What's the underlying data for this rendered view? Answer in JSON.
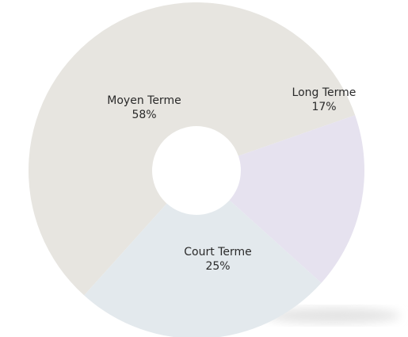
{
  "chart_data": {
    "type": "donut",
    "categories": [
      "Moyen Terme",
      "Long Terme",
      "Court Terme"
    ],
    "values": [
      58,
      17,
      25
    ],
    "value_labels": [
      "58%",
      "17%",
      "25%"
    ],
    "colors": [
      "#e7e5e0",
      "#e6e2ef",
      "#e3e9ed"
    ]
  }
}
